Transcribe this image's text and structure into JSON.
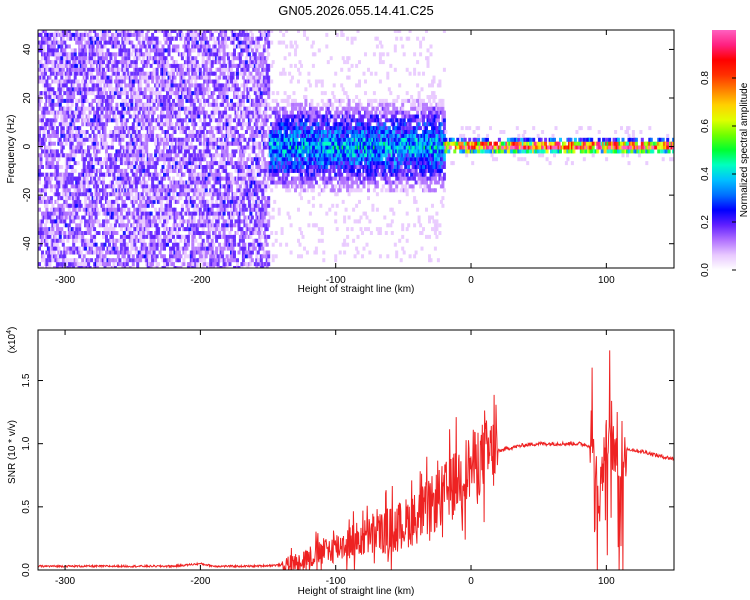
{
  "figure": {
    "title": "GN05.2026.055.14.41.C25"
  },
  "chart_data": [
    {
      "type": "heatmap",
      "xlabel": "Height of straight line (km)",
      "ylabel": "Frequency (Hz)",
      "xlim": [
        -320,
        150
      ],
      "ylim": [
        -50,
        48
      ],
      "x_ticks": [
        -300,
        -200,
        -100,
        0,
        100
      ],
      "y_ticks": [
        -40,
        -20,
        0,
        20,
        40
      ],
      "colorbar": {
        "label": "Normalized spectral amplitude",
        "range": [
          0,
          1
        ],
        "ticks": [
          "0.0",
          "0.2",
          "0.4",
          "0.6",
          "0.8"
        ],
        "colors": [
          "#ffffff",
          "#e8c8ff",
          "#b070ff",
          "#6020ff",
          "#0000ff",
          "#0070ff",
          "#00c0ff",
          "#00ffc0",
          "#00ff30",
          "#70ff00",
          "#e0ff00",
          "#ffd000",
          "#ff8000",
          "#ff3000",
          "#ff0000",
          "#ff2080",
          "#ff60c0"
        ]
      },
      "features": [
        {
          "x_range": [
            -320,
            -150
          ],
          "f_range": [
            -50,
            48
          ],
          "level": 0.15
        },
        {
          "x_range": [
            -150,
            -20
          ],
          "f_range": [
            -12,
            12
          ],
          "level": 0.35
        },
        {
          "x_range": [
            -20,
            150
          ],
          "f_range": [
            -2,
            2
          ],
          "level": 0.95
        }
      ]
    },
    {
      "type": "line",
      "xlabel": "Height of straight line (km)",
      "ylabel": "SNR (10 * v/v)",
      "scale_note": "(x10",
      "scale_exp": "4",
      "scale_close": ")",
      "xlim": [
        -320,
        150
      ],
      "ylim": [
        0,
        1.9
      ],
      "x_ticks": [
        -300,
        -200,
        -100,
        0,
        100
      ],
      "y_ticks": [
        "0.0",
        "0.5",
        "1.0",
        "1.5"
      ],
      "series": [
        {
          "color": "#ee2222",
          "x": [
            -320,
            -270,
            -220,
            -200,
            -190,
            -160,
            -140,
            -130,
            -120,
            -110,
            -100,
            -90,
            -80,
            -70,
            -60,
            -50,
            -40,
            -30,
            -20,
            -10,
            0,
            10,
            20,
            30,
            40,
            50,
            60,
            70,
            80,
            90,
            95,
            100,
            105,
            110,
            115,
            120,
            130,
            140,
            150
          ],
          "y": [
            0.03,
            0.03,
            0.03,
            0.05,
            0.03,
            0.03,
            0.04,
            0.06,
            0.1,
            0.14,
            0.18,
            0.22,
            0.25,
            0.28,
            0.32,
            0.36,
            0.42,
            0.5,
            0.6,
            0.72,
            0.82,
            0.9,
            0.94,
            0.97,
            0.99,
            1.0,
            1.0,
            1.0,
            1.0,
            0.98,
            0.6,
            1.0,
            0.98,
            0.7,
            0.96,
            0.95,
            0.93,
            0.9,
            0.88
          ]
        }
      ]
    }
  ]
}
